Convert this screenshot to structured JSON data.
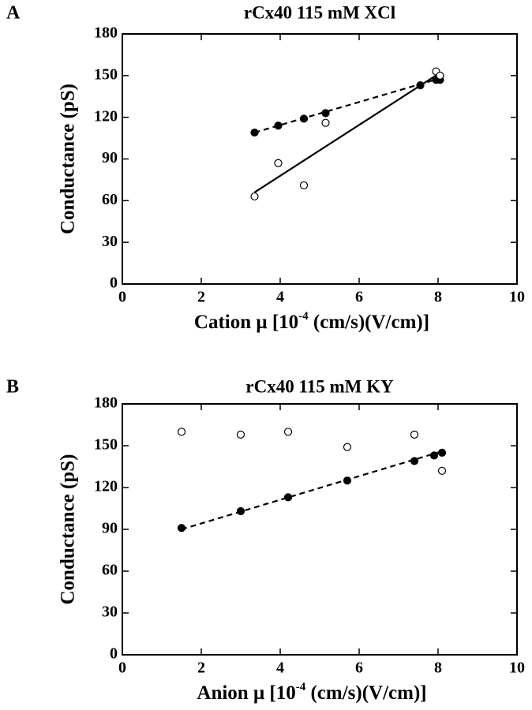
{
  "chart_data": [
    {
      "type": "scatter",
      "panel_label": "A",
      "title": "rCx40   115 mM  XCl",
      "ylabel": "Conductance  (pS)",
      "xlabel_parts": [
        "Cation μ [10",
        "-4",
        " (cm/s)(V/cm)]"
      ],
      "xlim": [
        0,
        10
      ],
      "xticks": [
        0,
        2,
        4,
        6,
        8,
        10
      ],
      "ylim": [
        0,
        180
      ],
      "yticks": [
        0,
        30,
        60,
        90,
        120,
        150,
        180
      ],
      "series": [
        {
          "marker": "filled",
          "color": "#000000",
          "x": [
            3.35,
            3.95,
            4.6,
            5.15,
            7.55,
            7.95,
            8.05
          ],
          "values": [
            109,
            114,
            119,
            123,
            143,
            147,
            147
          ]
        },
        {
          "marker": "open",
          "color": "#000000",
          "x": [
            3.35,
            3.95,
            4.6,
            5.15,
            7.95,
            8.05
          ],
          "values": [
            63,
            87,
            71,
            116,
            153,
            150
          ]
        }
      ],
      "fits": [
        {
          "style": "dashed",
          "x": [
            3.35,
            8.05
          ],
          "values": [
            109,
            148
          ]
        },
        {
          "style": "solid",
          "x": [
            3.35,
            8.05
          ],
          "values": [
            66,
            152
          ]
        }
      ]
    },
    {
      "type": "scatter",
      "panel_label": "B",
      "title": "rCx40   115 mM  KY",
      "ylabel": "Conductance  (pS)",
      "xlabel_parts": [
        "Anion μ [10",
        "-4",
        " (cm/s)(V/cm)]"
      ],
      "xlim": [
        0,
        10
      ],
      "xticks": [
        0,
        2,
        4,
        6,
        8,
        10
      ],
      "ylim": [
        0,
        180
      ],
      "yticks": [
        0,
        30,
        60,
        90,
        120,
        150,
        180
      ],
      "series": [
        {
          "marker": "open",
          "color": "#000000",
          "x": [
            1.5,
            3.0,
            4.2,
            5.7,
            7.4,
            8.1
          ],
          "values": [
            160,
            158,
            160,
            149,
            158,
            132
          ]
        },
        {
          "marker": "filled",
          "color": "#000000",
          "x": [
            1.5,
            3.0,
            4.2,
            5.7,
            7.4,
            7.9,
            8.1
          ],
          "values": [
            91,
            103,
            113,
            125,
            139,
            143,
            145
          ]
        }
      ],
      "fits": [
        {
          "style": "dashed",
          "x": [
            1.5,
            8.1
          ],
          "values": [
            90,
            146
          ]
        }
      ]
    }
  ]
}
